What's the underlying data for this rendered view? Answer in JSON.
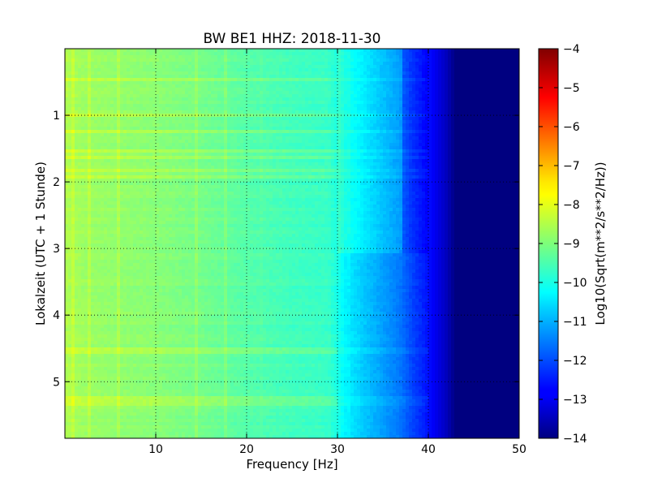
{
  "chart_data": {
    "type": "heatmap",
    "title": "BW BE1 HHZ: 2018-11-30",
    "xlabel": "Frequency [Hz]",
    "ylabel": "Lokalzeit (UTC + 1 Stunde)",
    "xlim": [
      0,
      50
    ],
    "ylim": [
      0,
      5.85
    ],
    "y_inverted": true,
    "x_ticks": [
      10,
      20,
      30,
      40,
      50
    ],
    "x_tick_labels": [
      "10",
      "20",
      "30",
      "40",
      "50"
    ],
    "y_ticks": [
      1,
      2,
      3,
      4,
      5
    ],
    "y_tick_labels": [
      "1",
      "2",
      "3",
      "4",
      "5"
    ],
    "grid": true,
    "colorscale": "jet",
    "colorbar": {
      "label": "Log10(Sqrt(m**2/s**2/Hz))",
      "range": [
        -14,
        -4
      ],
      "ticks": [
        -4,
        -5,
        -6,
        -7,
        -8,
        -9,
        -10,
        -11,
        -12,
        -13,
        -14
      ],
      "tick_labels": [
        "−4",
        "−5",
        "−6",
        "−7",
        "−8",
        "−9",
        "−10",
        "−11",
        "−12",
        "−13",
        "−14"
      ]
    },
    "frequency_profile": {
      "frequency_hz": [
        0,
        2,
        5,
        10,
        15,
        20,
        25,
        29,
        30,
        31,
        33,
        35,
        37,
        38,
        40,
        41,
        42,
        43,
        44,
        50
      ],
      "log10_psd": [
        -8.5,
        -8.7,
        -8.8,
        -8.9,
        -9.1,
        -9.4,
        -9.6,
        -9.7,
        -10.0,
        -10.4,
        -10.8,
        -11.2,
        -11.6,
        -12.0,
        -12.6,
        -13.0,
        -13.4,
        -14.0,
        -14.0,
        -14.0
      ]
    }
  }
}
